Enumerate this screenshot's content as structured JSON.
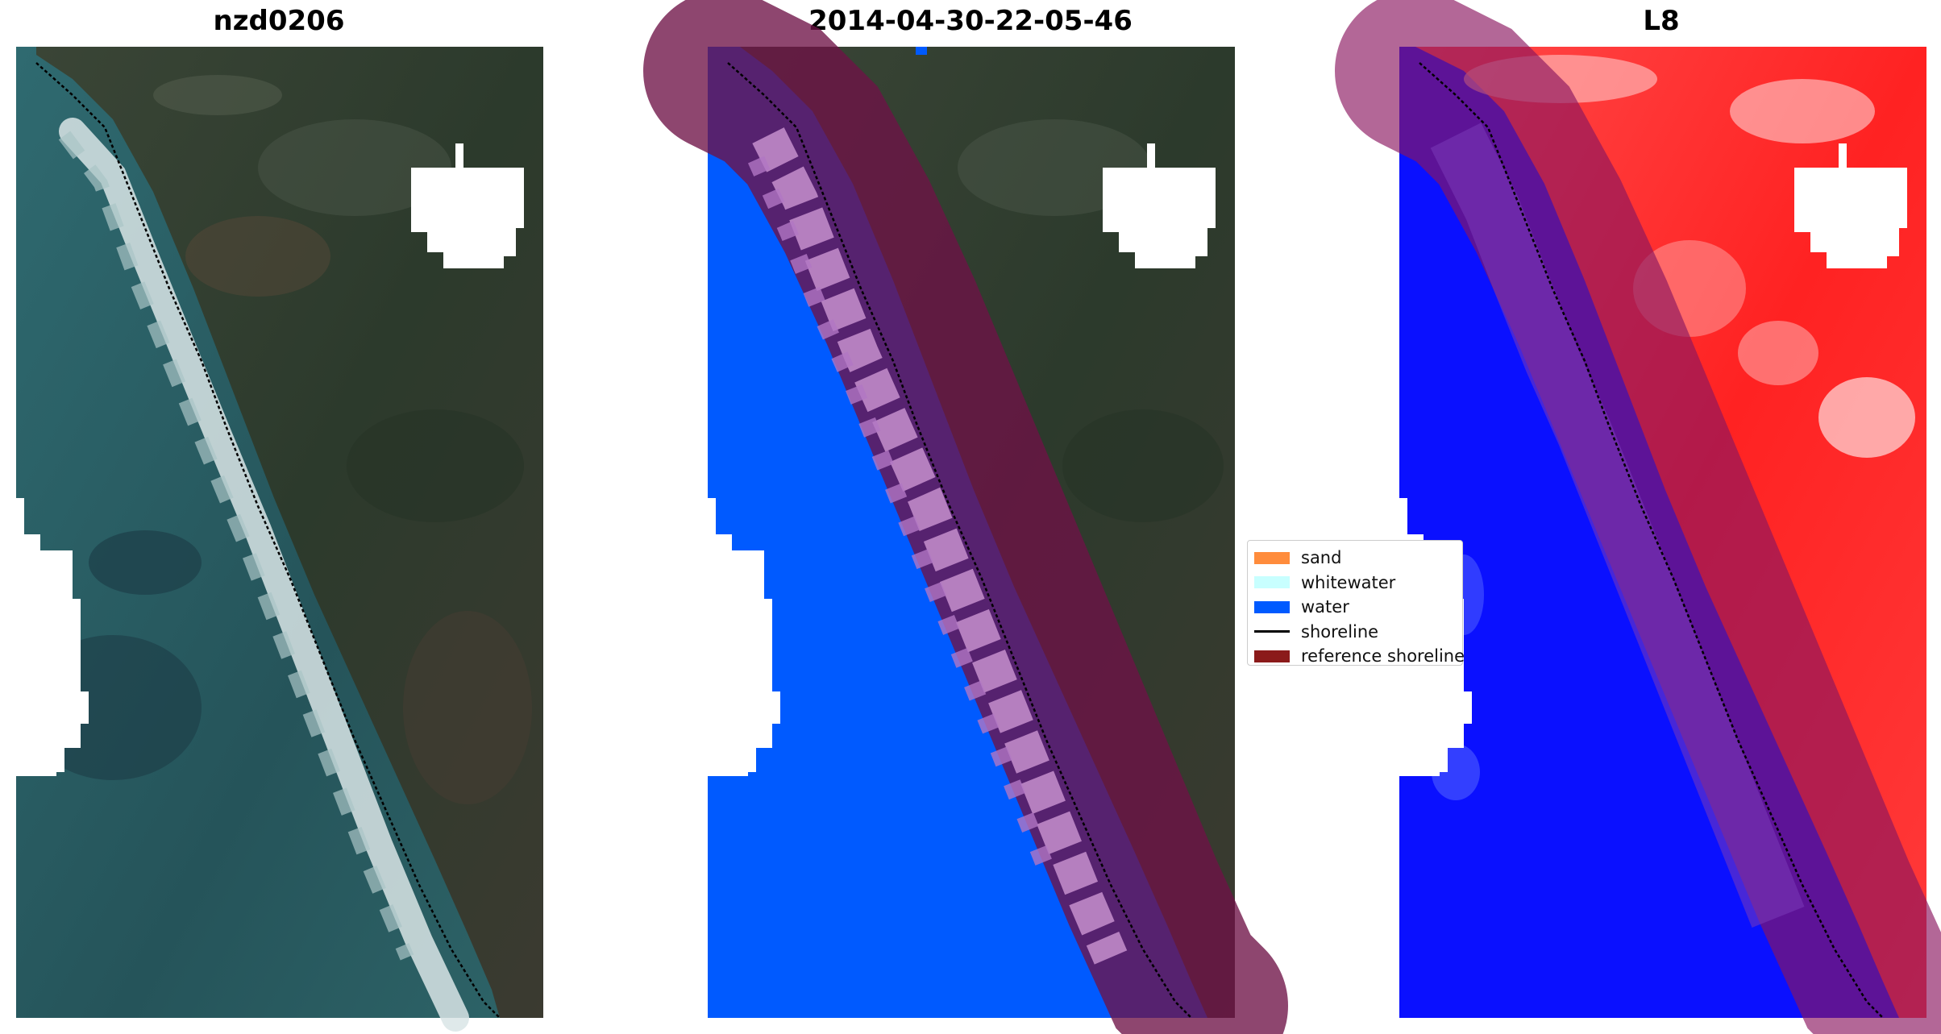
{
  "panels": [
    {
      "title": "nzd0206",
      "kind": "rgb-image"
    },
    {
      "title": "2014-04-30-22-05-46",
      "kind": "classified-image"
    },
    {
      "title": "L8",
      "kind": "mndwi-image"
    }
  ],
  "legend": {
    "items": [
      {
        "label": "sand",
        "type": "patch",
        "color": "#ff8c3c"
      },
      {
        "label": "whitewater",
        "type": "patch",
        "color": "#c8ffff"
      },
      {
        "label": "water",
        "type": "patch",
        "color": "#005aff"
      },
      {
        "label": "shoreline",
        "type": "line",
        "color": "#000000"
      },
      {
        "label": "reference shoreline",
        "type": "patch",
        "color": "#8b1a1a"
      }
    ]
  },
  "colors": {
    "water": "#005aff",
    "reference_band": "#7a0f2e",
    "shoreline": "#000000",
    "land_dark": "#2f3a2e",
    "sea_teal": "#2c5d62",
    "whitewater_foam": "#dfe9ec",
    "index_red": "#ff2a2a",
    "index_blue": "#0a10ff",
    "cloud_mask": "#ffffff"
  }
}
